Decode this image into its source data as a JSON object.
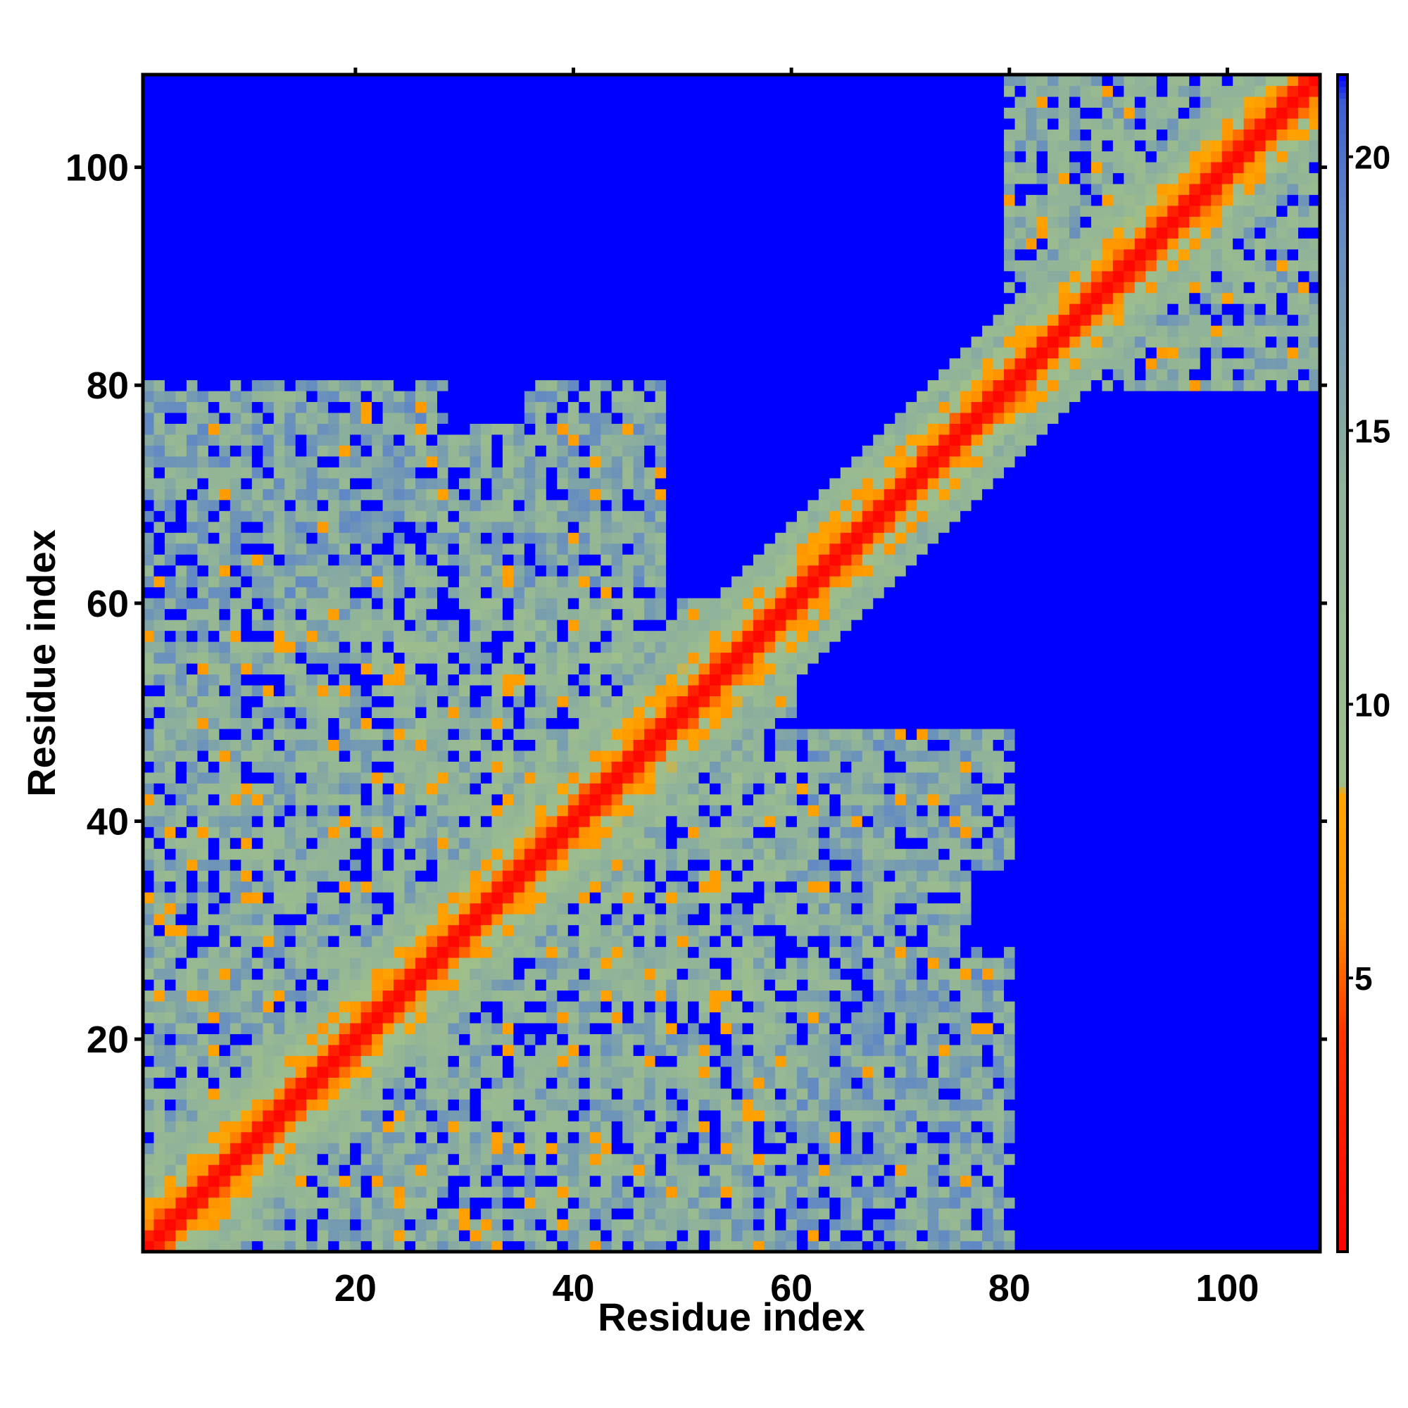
{
  "chart_data": {
    "type": "heatmap",
    "title": "",
    "xlabel": "Residue index",
    "ylabel": "Residue index",
    "xlim": [
      0.5,
      108.5
    ],
    "ylim": [
      0.5,
      108.5
    ],
    "x_ticks": [
      20,
      40,
      60,
      80,
      100
    ],
    "y_ticks": [
      20,
      40,
      60,
      80,
      100
    ],
    "x_tick_labels": [
      "20",
      "40",
      "60",
      "80",
      "100"
    ],
    "y_tick_labels": [
      "20",
      "40",
      "60",
      "80",
      "100"
    ],
    "n_residues": 108,
    "colorbar": {
      "range": [
        0,
        21.5
      ],
      "ticks": [
        5,
        10,
        15,
        20
      ],
      "tick_labels": [
        "5",
        "10",
        "15",
        "20"
      ],
      "stops": [
        {
          "value": 0,
          "color": "#ff0000"
        },
        {
          "value": 4,
          "color": "#ff3300"
        },
        {
          "value": 6,
          "color": "#ff8c00"
        },
        {
          "value": 8.4,
          "color": "#ffa500"
        },
        {
          "value": 8.5,
          "color": "#9fbf8a"
        },
        {
          "value": 14,
          "color": "#8fb29a"
        },
        {
          "value": 19,
          "color": "#5f87c5"
        },
        {
          "value": 21,
          "color": "#3b5fcf"
        },
        {
          "value": 21.5,
          "color": "#0000ff"
        }
      ]
    },
    "background_value": 21.5,
    "background_color": "#0000ff",
    "description_values": "symmetric residue-residue distance map; diagonal ~0 (red), near-diagonal band 3-8 (orange), contact clusters 9-19 (green/steel-blue), distant pairs >21 (blue)",
    "clusters": [
      {
        "x_range": [
          1,
          76
        ],
        "y_range": [
          1,
          42
        ],
        "mean": 14
      },
      {
        "x_range": [
          22,
          60
        ],
        "y_range": [
          22,
          60
        ],
        "mean": 13
      },
      {
        "x_range": [
          1,
          24
        ],
        "y_range": [
          60,
          80
        ],
        "mean": 15
      },
      {
        "x_range": [
          36,
          48
        ],
        "y_range": [
          60,
          80
        ],
        "mean": 15
      },
      {
        "x_range": [
          56,
          80
        ],
        "y_range": [
          1,
          28
        ],
        "mean": 15
      },
      {
        "x_range": [
          80,
          108
        ],
        "y_range": [
          80,
          108
        ],
        "mean": 14
      }
    ]
  }
}
